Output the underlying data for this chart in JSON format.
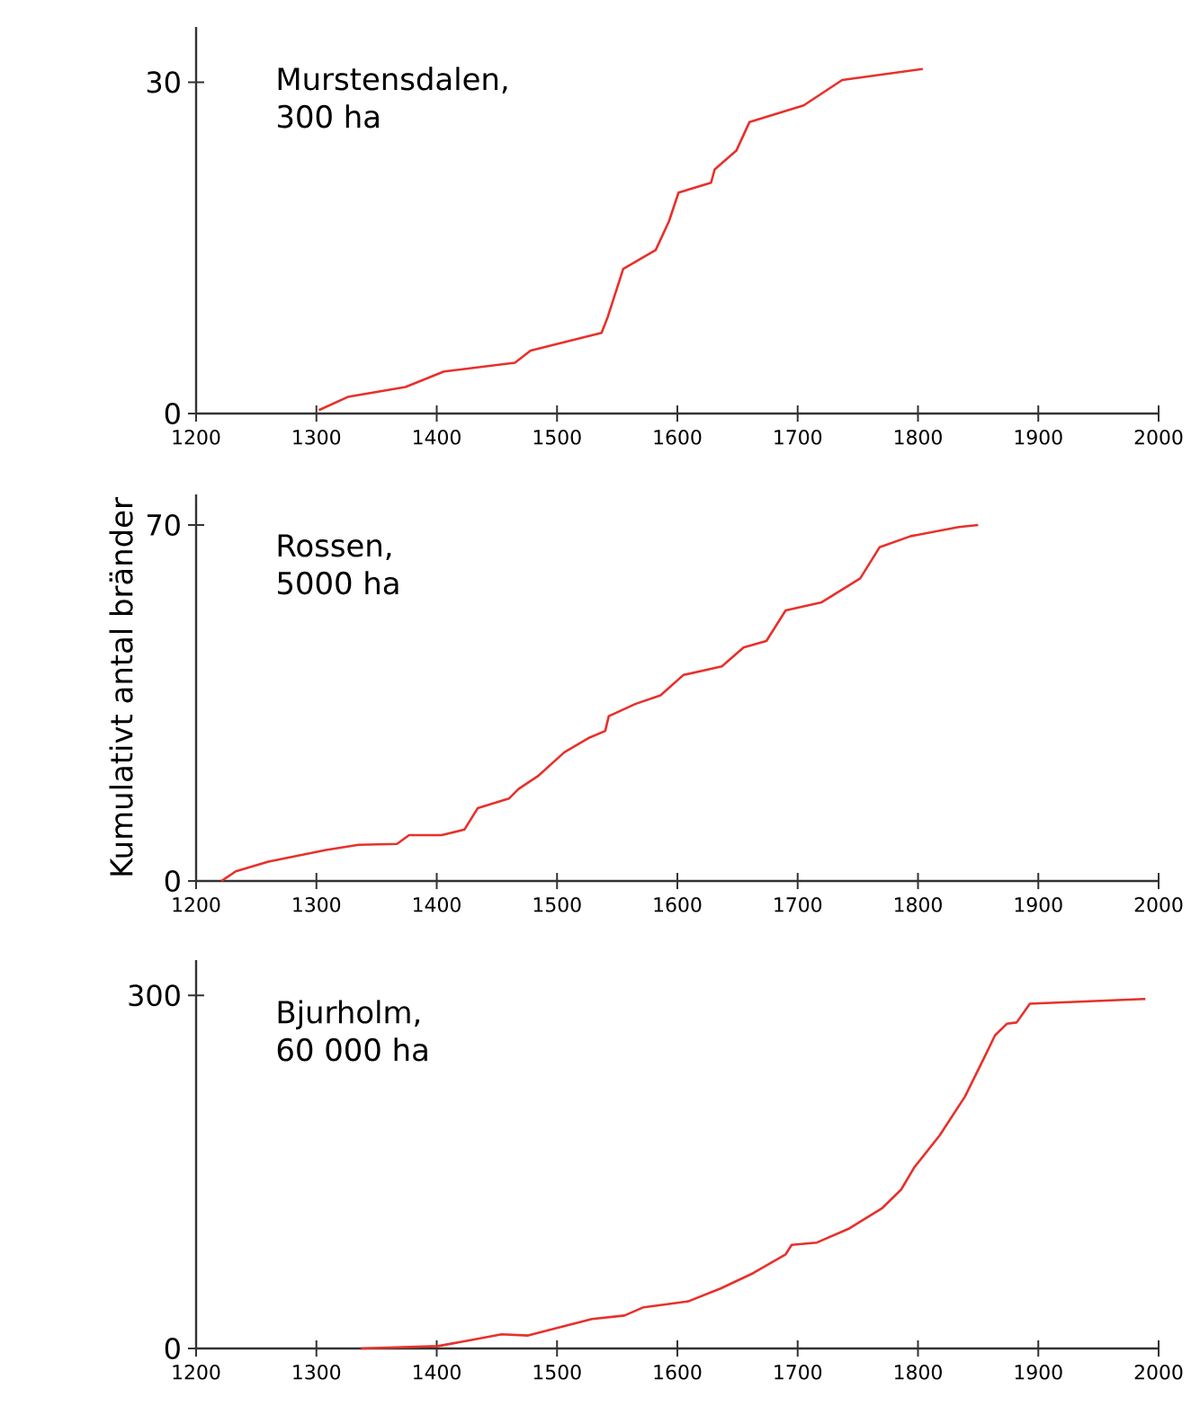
{
  "chart_data": [
    {
      "type": "line",
      "title": "Murstensdalen,",
      "subtitle": "300 ha",
      "color": "#e8302a",
      "xlim": [
        1200,
        2000
      ],
      "xticks": [
        1200,
        1300,
        1400,
        1500,
        1600,
        1700,
        1800,
        1900,
        2000
      ],
      "ylim": [
        0,
        35
      ],
      "yticks": [
        0,
        30
      ],
      "x": [
        1302,
        1326,
        1374,
        1406,
        1465,
        1478,
        1537,
        1542,
        1555,
        1582,
        1593,
        1601,
        1628,
        1631,
        1649,
        1660,
        1705,
        1737,
        1804
      ],
      "values": [
        0.3,
        1.5,
        2.4,
        3.8,
        4.6,
        5.7,
        7.3,
        8.7,
        13.1,
        14.8,
        17.4,
        20.0,
        20.9,
        22.1,
        23.8,
        26.4,
        27.9,
        30.2,
        31.2
      ]
    },
    {
      "type": "line",
      "title": "Rossen,",
      "subtitle": "5000 ha",
      "ylabel": "Kumulativt antal bränder",
      "color": "#e8302a",
      "xlim": [
        1200,
        2000
      ],
      "xticks": [
        1200,
        1300,
        1400,
        1500,
        1600,
        1700,
        1800,
        1900,
        2000
      ],
      "ylim": [
        0,
        76
      ],
      "yticks": [
        0,
        70
      ],
      "x": [
        1221,
        1233,
        1260,
        1308,
        1335,
        1367,
        1377,
        1404,
        1423,
        1434,
        1460,
        1468,
        1484,
        1506,
        1527,
        1540,
        1543,
        1565,
        1586,
        1605,
        1637,
        1655,
        1674,
        1690,
        1720,
        1752,
        1768,
        1794,
        1834,
        1850
      ],
      "values": [
        0,
        1.9,
        3.8,
        6.1,
        7.1,
        7.3,
        9.0,
        9.0,
        10.1,
        14.3,
        16.2,
        18.1,
        20.6,
        25.3,
        28.2,
        29.5,
        32.4,
        34.8,
        36.5,
        40.5,
        42.2,
        45.9,
        47.2,
        53.2,
        54.8,
        59.5,
        65.6,
        67.8,
        69.6,
        70.0
      ]
    },
    {
      "type": "line",
      "title": "Bjurholm,",
      "subtitle": "60 000 ha",
      "color": "#e8302a",
      "xlim": [
        1200,
        2000
      ],
      "xticks": [
        1200,
        1300,
        1400,
        1500,
        1600,
        1700,
        1800,
        1900,
        2000
      ],
      "ylim": [
        0,
        330
      ],
      "yticks": [
        0,
        300
      ],
      "x": [
        1337,
        1401,
        1428,
        1454,
        1476,
        1502,
        1529,
        1556,
        1572,
        1609,
        1636,
        1663,
        1690,
        1695,
        1716,
        1743,
        1770,
        1786,
        1797,
        1818,
        1839,
        1855,
        1864,
        1874,
        1882,
        1893,
        1989
      ],
      "values": [
        0,
        2,
        7,
        12,
        11,
        18,
        25,
        28,
        35,
        40,
        51,
        64,
        80,
        88,
        90,
        102,
        119,
        135,
        154,
        181,
        214,
        247,
        266,
        276,
        277,
        293,
        297
      ]
    }
  ]
}
